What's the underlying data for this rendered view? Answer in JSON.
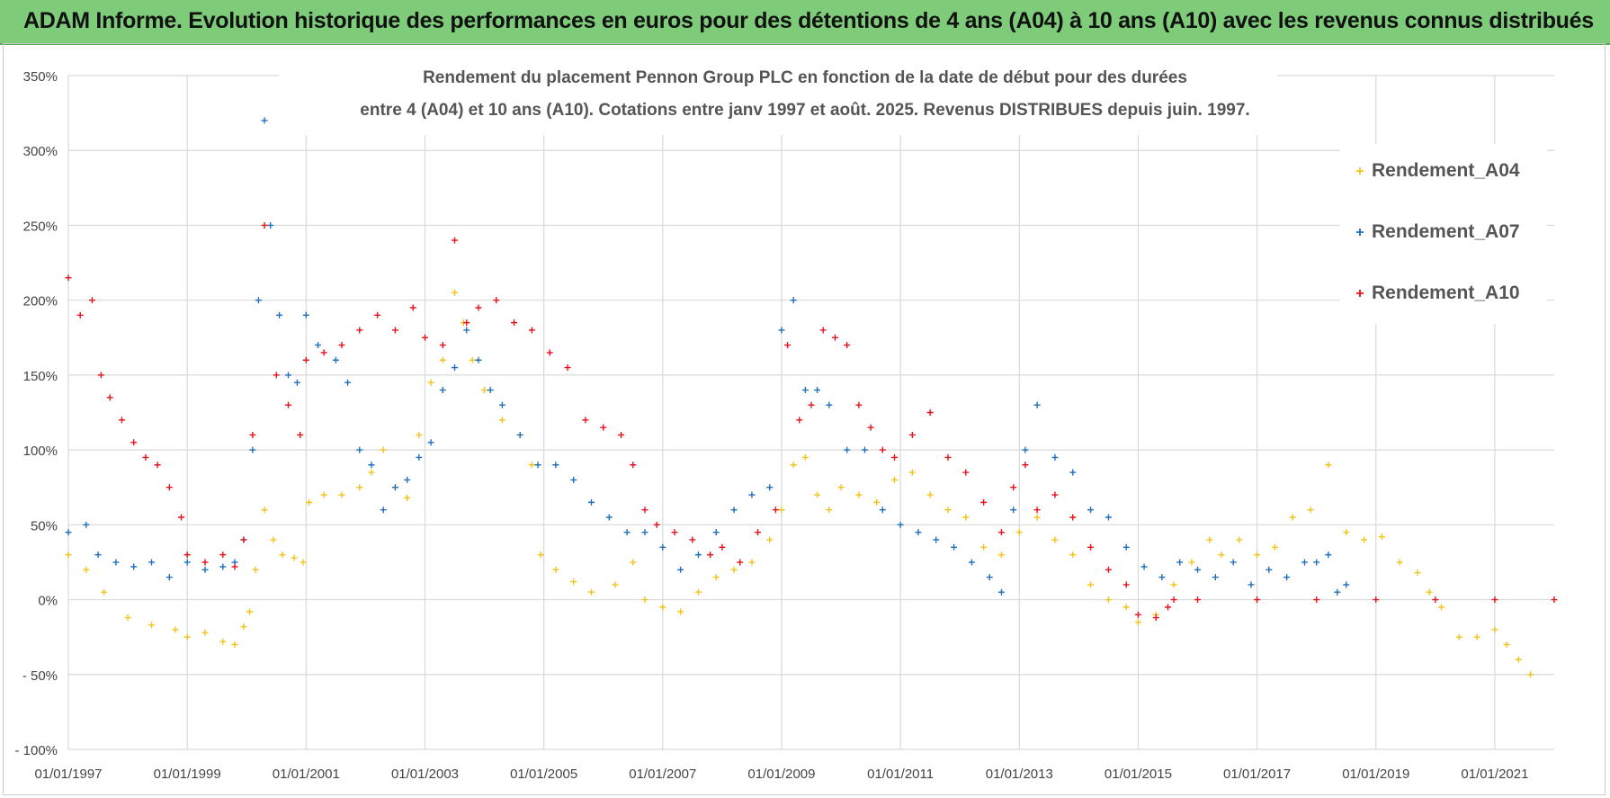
{
  "header": {
    "title": "ADAM Informe. Evolution historique des performances en euros pour des détentions de 4 ans (A04) à 10 ans (A10) avec les revenus connus distribués"
  },
  "chart_data": {
    "type": "scatter",
    "title_line1": "Rendement du placement Pennon Group PLC en fonction de la date de début pour des durées",
    "title_line2": "entre 4 (A04) et 10 ans (A10). Cotations entre janv 1997 et août. 2025. Revenus DISTRIBUES depuis juin. 1997.",
    "xlabel": "",
    "ylabel": "",
    "ylim": [
      -100,
      350
    ],
    "xlim": [
      1997.0,
      2022.0
    ],
    "y_ticks": [
      {
        "value": 350,
        "label": "350%"
      },
      {
        "value": 300,
        "label": "300%"
      },
      {
        "value": 250,
        "label": "250%"
      },
      {
        "value": 200,
        "label": "200%"
      },
      {
        "value": 150,
        "label": "150%"
      },
      {
        "value": 100,
        "label": "100%"
      },
      {
        "value": 50,
        "label": "50%"
      },
      {
        "value": 0,
        "label": "0%"
      },
      {
        "value": -50,
        "label": "- 50%"
      },
      {
        "value": -100,
        "label": "- 100%"
      }
    ],
    "x_ticks": [
      {
        "value": 1997,
        "label": "01/01/1997"
      },
      {
        "value": 1999,
        "label": "01/01/1999"
      },
      {
        "value": 2001,
        "label": "01/01/2001"
      },
      {
        "value": 2003,
        "label": "01/01/2003"
      },
      {
        "value": 2005,
        "label": "01/01/2005"
      },
      {
        "value": 2007,
        "label": "01/01/2007"
      },
      {
        "value": 2009,
        "label": "01/01/2009"
      },
      {
        "value": 2011,
        "label": "01/01/2011"
      },
      {
        "value": 2013,
        "label": "01/01/2013"
      },
      {
        "value": 2015,
        "label": "01/01/2015"
      },
      {
        "value": 2017,
        "label": "01/01/2017"
      },
      {
        "value": 2019,
        "label": "01/01/2019"
      },
      {
        "value": 2021,
        "label": "01/01/2021"
      }
    ],
    "grid": true,
    "legend_position": "right",
    "marker": "+",
    "series": [
      {
        "name": "Rendement_A04",
        "color": "#f5c21a",
        "points": [
          [
            1997.0,
            30
          ],
          [
            1997.3,
            20
          ],
          [
            1997.6,
            5
          ],
          [
            1998.0,
            -12
          ],
          [
            1998.4,
            -17
          ],
          [
            1998.8,
            -20
          ],
          [
            1999.0,
            -25
          ],
          [
            1999.3,
            -22
          ],
          [
            1999.6,
            -28
          ],
          [
            1999.8,
            -30
          ],
          [
            1999.95,
            -18
          ],
          [
            2000.05,
            -8
          ],
          [
            2000.15,
            20
          ],
          [
            2000.3,
            60
          ],
          [
            2000.45,
            40
          ],
          [
            2000.6,
            30
          ],
          [
            2000.8,
            28
          ],
          [
            2000.95,
            25
          ],
          [
            2001.05,
            65
          ],
          [
            2001.3,
            70
          ],
          [
            2001.6,
            70
          ],
          [
            2001.9,
            75
          ],
          [
            2002.1,
            85
          ],
          [
            2002.3,
            100
          ],
          [
            2002.5,
            75
          ],
          [
            2002.7,
            68
          ],
          [
            2002.9,
            110
          ],
          [
            2003.1,
            145
          ],
          [
            2003.3,
            160
          ],
          [
            2003.5,
            205
          ],
          [
            2003.65,
            185
          ],
          [
            2003.8,
            160
          ],
          [
            2004.0,
            140
          ],
          [
            2004.3,
            120
          ],
          [
            2004.6,
            110
          ],
          [
            2004.8,
            90
          ],
          [
            2004.95,
            30
          ],
          [
            2005.2,
            20
          ],
          [
            2005.5,
            12
          ],
          [
            2005.8,
            5
          ],
          [
            2006.2,
            10
          ],
          [
            2006.5,
            25
          ],
          [
            2006.7,
            0
          ],
          [
            2007.0,
            -5
          ],
          [
            2007.3,
            -8
          ],
          [
            2007.6,
            5
          ],
          [
            2007.9,
            15
          ],
          [
            2008.2,
            20
          ],
          [
            2008.5,
            25
          ],
          [
            2008.8,
            40
          ],
          [
            2009.0,
            60
          ],
          [
            2009.2,
            90
          ],
          [
            2009.4,
            95
          ],
          [
            2009.6,
            70
          ],
          [
            2009.8,
            60
          ],
          [
            2010.0,
            75
          ],
          [
            2010.3,
            70
          ],
          [
            2010.6,
            65
          ],
          [
            2010.9,
            80
          ],
          [
            2011.2,
            85
          ],
          [
            2011.5,
            70
          ],
          [
            2011.8,
            60
          ],
          [
            2012.1,
            55
          ],
          [
            2012.4,
            35
          ],
          [
            2012.7,
            30
          ],
          [
            2013.0,
            45
          ],
          [
            2013.3,
            55
          ],
          [
            2013.6,
            40
          ],
          [
            2013.9,
            30
          ],
          [
            2014.2,
            10
          ],
          [
            2014.5,
            0
          ],
          [
            2014.8,
            -5
          ],
          [
            2015.0,
            -15
          ],
          [
            2015.3,
            -10
          ],
          [
            2015.6,
            10
          ],
          [
            2015.9,
            25
          ],
          [
            2016.2,
            40
          ],
          [
            2016.4,
            30
          ],
          [
            2016.7,
            40
          ],
          [
            2017.0,
            30
          ],
          [
            2017.3,
            35
          ],
          [
            2017.6,
            55
          ],
          [
            2017.9,
            60
          ],
          [
            2018.2,
            90
          ],
          [
            2018.5,
            45
          ],
          [
            2018.8,
            40
          ],
          [
            2019.1,
            42
          ],
          [
            2019.4,
            25
          ],
          [
            2019.7,
            18
          ],
          [
            2019.9,
            5
          ],
          [
            2020.1,
            -5
          ],
          [
            2020.4,
            -25
          ],
          [
            2020.7,
            -25
          ],
          [
            2021.0,
            -20
          ],
          [
            2021.2,
            -30
          ],
          [
            2021.4,
            -40
          ],
          [
            2021.6,
            -50
          ]
        ]
      },
      {
        "name": "Rendement_A07",
        "color": "#1f6fbf",
        "points": [
          [
            1997.0,
            45
          ],
          [
            1997.3,
            50
          ],
          [
            1997.5,
            30
          ],
          [
            1997.8,
            25
          ],
          [
            1998.1,
            22
          ],
          [
            1998.4,
            25
          ],
          [
            1998.7,
            15
          ],
          [
            1999.0,
            25
          ],
          [
            1999.3,
            20
          ],
          [
            1999.6,
            22
          ],
          [
            1999.8,
            25
          ],
          [
            1999.95,
            40
          ],
          [
            2000.1,
            100
          ],
          [
            2000.2,
            200
          ],
          [
            2000.3,
            320
          ],
          [
            2000.4,
            250
          ],
          [
            2000.55,
            190
          ],
          [
            2000.7,
            150
          ],
          [
            2000.85,
            145
          ],
          [
            2001.0,
            190
          ],
          [
            2001.2,
            170
          ],
          [
            2001.5,
            160
          ],
          [
            2001.7,
            145
          ],
          [
            2001.9,
            100
          ],
          [
            2002.1,
            90
          ],
          [
            2002.3,
            60
          ],
          [
            2002.5,
            75
          ],
          [
            2002.7,
            80
          ],
          [
            2002.9,
            95
          ],
          [
            2003.1,
            105
          ],
          [
            2003.3,
            140
          ],
          [
            2003.5,
            155
          ],
          [
            2003.7,
            180
          ],
          [
            2003.9,
            160
          ],
          [
            2004.1,
            140
          ],
          [
            2004.3,
            130
          ],
          [
            2004.6,
            110
          ],
          [
            2004.9,
            90
          ],
          [
            2005.2,
            90
          ],
          [
            2005.5,
            80
          ],
          [
            2005.8,
            65
          ],
          [
            2006.1,
            55
          ],
          [
            2006.4,
            45
          ],
          [
            2006.7,
            45
          ],
          [
            2007.0,
            35
          ],
          [
            2007.3,
            20
          ],
          [
            2007.6,
            30
          ],
          [
            2007.9,
            45
          ],
          [
            2008.2,
            60
          ],
          [
            2008.5,
            70
          ],
          [
            2008.8,
            75
          ],
          [
            2009.0,
            180
          ],
          [
            2009.2,
            200
          ],
          [
            2009.4,
            140
          ],
          [
            2009.6,
            140
          ],
          [
            2009.8,
            130
          ],
          [
            2010.1,
            100
          ],
          [
            2010.4,
            100
          ],
          [
            2010.7,
            60
          ],
          [
            2011.0,
            50
          ],
          [
            2011.3,
            45
          ],
          [
            2011.6,
            40
          ],
          [
            2011.9,
            35
          ],
          [
            2012.2,
            25
          ],
          [
            2012.5,
            15
          ],
          [
            2012.7,
            5
          ],
          [
            2012.9,
            60
          ],
          [
            2013.1,
            100
          ],
          [
            2013.3,
            130
          ],
          [
            2013.6,
            95
          ],
          [
            2013.9,
            85
          ],
          [
            2014.2,
            60
          ],
          [
            2014.5,
            55
          ],
          [
            2014.8,
            35
          ],
          [
            2015.1,
            22
          ],
          [
            2015.4,
            15
          ],
          [
            2015.7,
            25
          ],
          [
            2016.0,
            20
          ],
          [
            2016.3,
            15
          ],
          [
            2016.6,
            25
          ],
          [
            2016.9,
            10
          ],
          [
            2017.2,
            20
          ],
          [
            2017.5,
            15
          ],
          [
            2017.8,
            25
          ],
          [
            2018.0,
            25
          ],
          [
            2018.2,
            30
          ],
          [
            2018.35,
            5
          ],
          [
            2018.5,
            10
          ]
        ]
      },
      {
        "name": "Rendement_A10",
        "color": "#e8111b",
        "points": [
          [
            1997.0,
            215
          ],
          [
            1997.2,
            190
          ],
          [
            1997.4,
            200
          ],
          [
            1997.55,
            150
          ],
          [
            1997.7,
            135
          ],
          [
            1997.9,
            120
          ],
          [
            1998.1,
            105
          ],
          [
            1998.3,
            95
          ],
          [
            1998.5,
            90
          ],
          [
            1998.7,
            75
          ],
          [
            1998.9,
            55
          ],
          [
            1999.0,
            30
          ],
          [
            1999.3,
            25
          ],
          [
            1999.6,
            30
          ],
          [
            1999.8,
            22
          ],
          [
            1999.95,
            40
          ],
          [
            2000.1,
            110
          ],
          [
            2000.3,
            250
          ],
          [
            2000.5,
            150
          ],
          [
            2000.7,
            130
          ],
          [
            2000.9,
            110
          ],
          [
            2001.0,
            160
          ],
          [
            2001.3,
            165
          ],
          [
            2001.6,
            170
          ],
          [
            2001.9,
            180
          ],
          [
            2002.2,
            190
          ],
          [
            2002.5,
            180
          ],
          [
            2002.8,
            195
          ],
          [
            2003.0,
            175
          ],
          [
            2003.3,
            170
          ],
          [
            2003.5,
            240
          ],
          [
            2003.7,
            185
          ],
          [
            2003.9,
            195
          ],
          [
            2004.2,
            200
          ],
          [
            2004.5,
            185
          ],
          [
            2004.8,
            180
          ],
          [
            2005.1,
            165
          ],
          [
            2005.4,
            155
          ],
          [
            2005.7,
            120
          ],
          [
            2006.0,
            115
          ],
          [
            2006.3,
            110
          ],
          [
            2006.5,
            90
          ],
          [
            2006.7,
            60
          ],
          [
            2006.9,
            50
          ],
          [
            2007.2,
            45
          ],
          [
            2007.5,
            40
          ],
          [
            2007.8,
            30
          ],
          [
            2008.0,
            35
          ],
          [
            2008.3,
            25
          ],
          [
            2008.6,
            45
          ],
          [
            2008.9,
            60
          ],
          [
            2009.1,
            170
          ],
          [
            2009.3,
            120
          ],
          [
            2009.5,
            130
          ],
          [
            2009.7,
            180
          ],
          [
            2009.9,
            175
          ],
          [
            2010.1,
            170
          ],
          [
            2010.3,
            130
          ],
          [
            2010.5,
            115
          ],
          [
            2010.7,
            100
          ],
          [
            2010.9,
            95
          ],
          [
            2011.2,
            110
          ],
          [
            2011.5,
            125
          ],
          [
            2011.8,
            95
          ],
          [
            2012.1,
            85
          ],
          [
            2012.4,
            65
          ],
          [
            2012.7,
            45
          ],
          [
            2012.9,
            75
          ],
          [
            2013.1,
            90
          ],
          [
            2013.3,
            60
          ],
          [
            2013.6,
            70
          ],
          [
            2013.9,
            55
          ],
          [
            2014.2,
            35
          ],
          [
            2014.5,
            20
          ],
          [
            2014.8,
            10
          ],
          [
            2015.0,
            -10
          ],
          [
            2015.3,
            -12
          ],
          [
            2015.5,
            -5
          ],
          [
            2015.6,
            0
          ],
          [
            2016.0,
            0
          ],
          [
            2017.0,
            0
          ],
          [
            2018.0,
            0
          ],
          [
            2019.0,
            0
          ],
          [
            2020.0,
            0
          ],
          [
            2021.0,
            0
          ],
          [
            2022.0,
            0
          ]
        ]
      }
    ]
  }
}
